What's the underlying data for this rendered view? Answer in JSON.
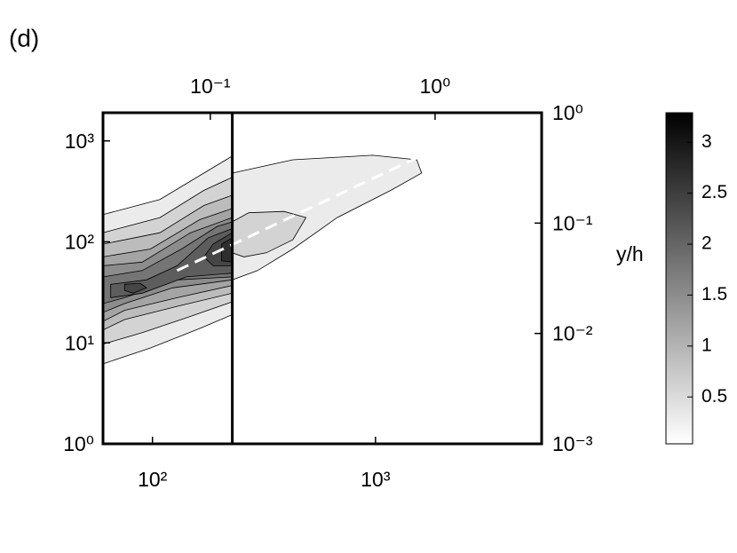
{
  "panel_label": "(d)",
  "chart_data": {
    "type": "contour",
    "xlim": [
      60,
      5560
    ],
    "log_x": true,
    "xticks": [
      {
        "value": 100,
        "label": "10²"
      },
      {
        "value": 1000,
        "label": "10³"
      }
    ],
    "ylim": [
      1,
      1900
    ],
    "log_y": true,
    "yticks": [
      {
        "value": 1,
        "label": "10⁰"
      },
      {
        "value": 10,
        "label": "10¹"
      },
      {
        "value": 100,
        "label": "10²"
      },
      {
        "value": 1000,
        "label": "10³"
      }
    ],
    "x2lim": [
      0.0333,
      2.98
    ],
    "x2ticks": [
      {
        "value": 0.1,
        "label": "10⁻¹"
      },
      {
        "value": 1,
        "label": "10⁰"
      }
    ],
    "y2lim": [
      0.001,
      1
    ],
    "y2ticks": [
      {
        "value": 0.001,
        "label": "10⁻³"
      },
      {
        "value": 0.01,
        "label": "10⁻²"
      },
      {
        "value": 0.1,
        "label": "10⁻¹"
      },
      {
        "value": 1,
        "label": "10⁰"
      }
    ],
    "y2label": "y/h",
    "vline": 228,
    "ridge_line": {
      "x": [
        129,
        1530
      ],
      "y": [
        52,
        678
      ]
    },
    "clim": [
      0.04,
      3.29
    ],
    "cticks": [
      0.5,
      1,
      1.5,
      2,
      2.5,
      3
    ],
    "contours": [
      {
        "level": 0.3,
        "x": [
          228,
          426,
          970,
          1530,
          1610,
          1170,
          674,
          426,
          296,
          228
        ],
        "y": [
          480,
          650,
          720,
          650,
          480,
          323,
          174,
          85,
          52,
          42
        ]
      },
      {
        "level": 0.3,
        "x": [
          60,
          108,
          170,
          228,
          228,
          163,
          98,
          60
        ],
        "y": [
          186,
          263,
          480,
          708,
          19,
          13.9,
          8.9,
          6.2
        ]
      },
      {
        "level": 0.6,
        "x": [
          228,
          270,
          389,
          488,
          426,
          324,
          257,
          228
        ],
        "y": [
          158,
          194,
          200,
          174,
          105,
          78,
          71,
          78
        ]
      },
      {
        "level": 0.6,
        "x": [
          60,
          108,
          170,
          228,
          228,
          142,
          90,
          60
        ],
        "y": [
          123,
          174,
          323,
          436,
          25.5,
          17.7,
          12.6,
          9.7
        ]
      },
      {
        "level": 0.9,
        "x": [
          60,
          108,
          170,
          228,
          228,
          129,
          75,
          60
        ],
        "y": [
          95,
          123,
          229,
          290,
          31,
          23,
          17,
          13.4
        ]
      },
      {
        "level": 1.2,
        "x": [
          60,
          98,
          163,
          228,
          228,
          129,
          75,
          60
        ],
        "y": [
          71,
          85,
          166,
          214,
          37,
          28,
          21,
          16.3
        ]
      },
      {
        "level": 1.5,
        "x": [
          60,
          90,
          148,
          228,
          228,
          123,
          75,
          60
        ],
        "y": [
          58,
          63,
          123,
          174,
          42,
          35,
          24.5,
          20
        ]
      },
      {
        "level": 1.8,
        "x": [
          60,
          90,
          135,
          195,
          228,
          228,
          129,
          75,
          60
        ],
        "y": [
          45,
          52,
          85,
          142,
          158,
          45,
          42,
          28,
          24.5
        ]
      },
      {
        "level": 2.1,
        "x": [
          65,
          94,
          129,
          178,
          228,
          228,
          142,
          90,
          65
        ],
        "y": [
          38,
          42,
          58,
          110,
          135,
          49,
          45,
          31,
          28
        ]
      },
      {
        "level": 2.4,
        "x": [
          187,
          228,
          228,
          187,
          170
        ],
        "y": [
          95,
          123,
          58,
          58,
          71
        ]
      },
      {
        "level": 2.4,
        "x": [
          75,
          88,
          94,
          82,
          75
        ],
        "y": [
          38,
          39,
          35,
          31,
          33
        ]
      },
      {
        "level": 2.7,
        "x": [
          204,
          228,
          228,
          204
        ],
        "y": [
          95,
          110,
          63,
          65
        ]
      }
    ]
  }
}
